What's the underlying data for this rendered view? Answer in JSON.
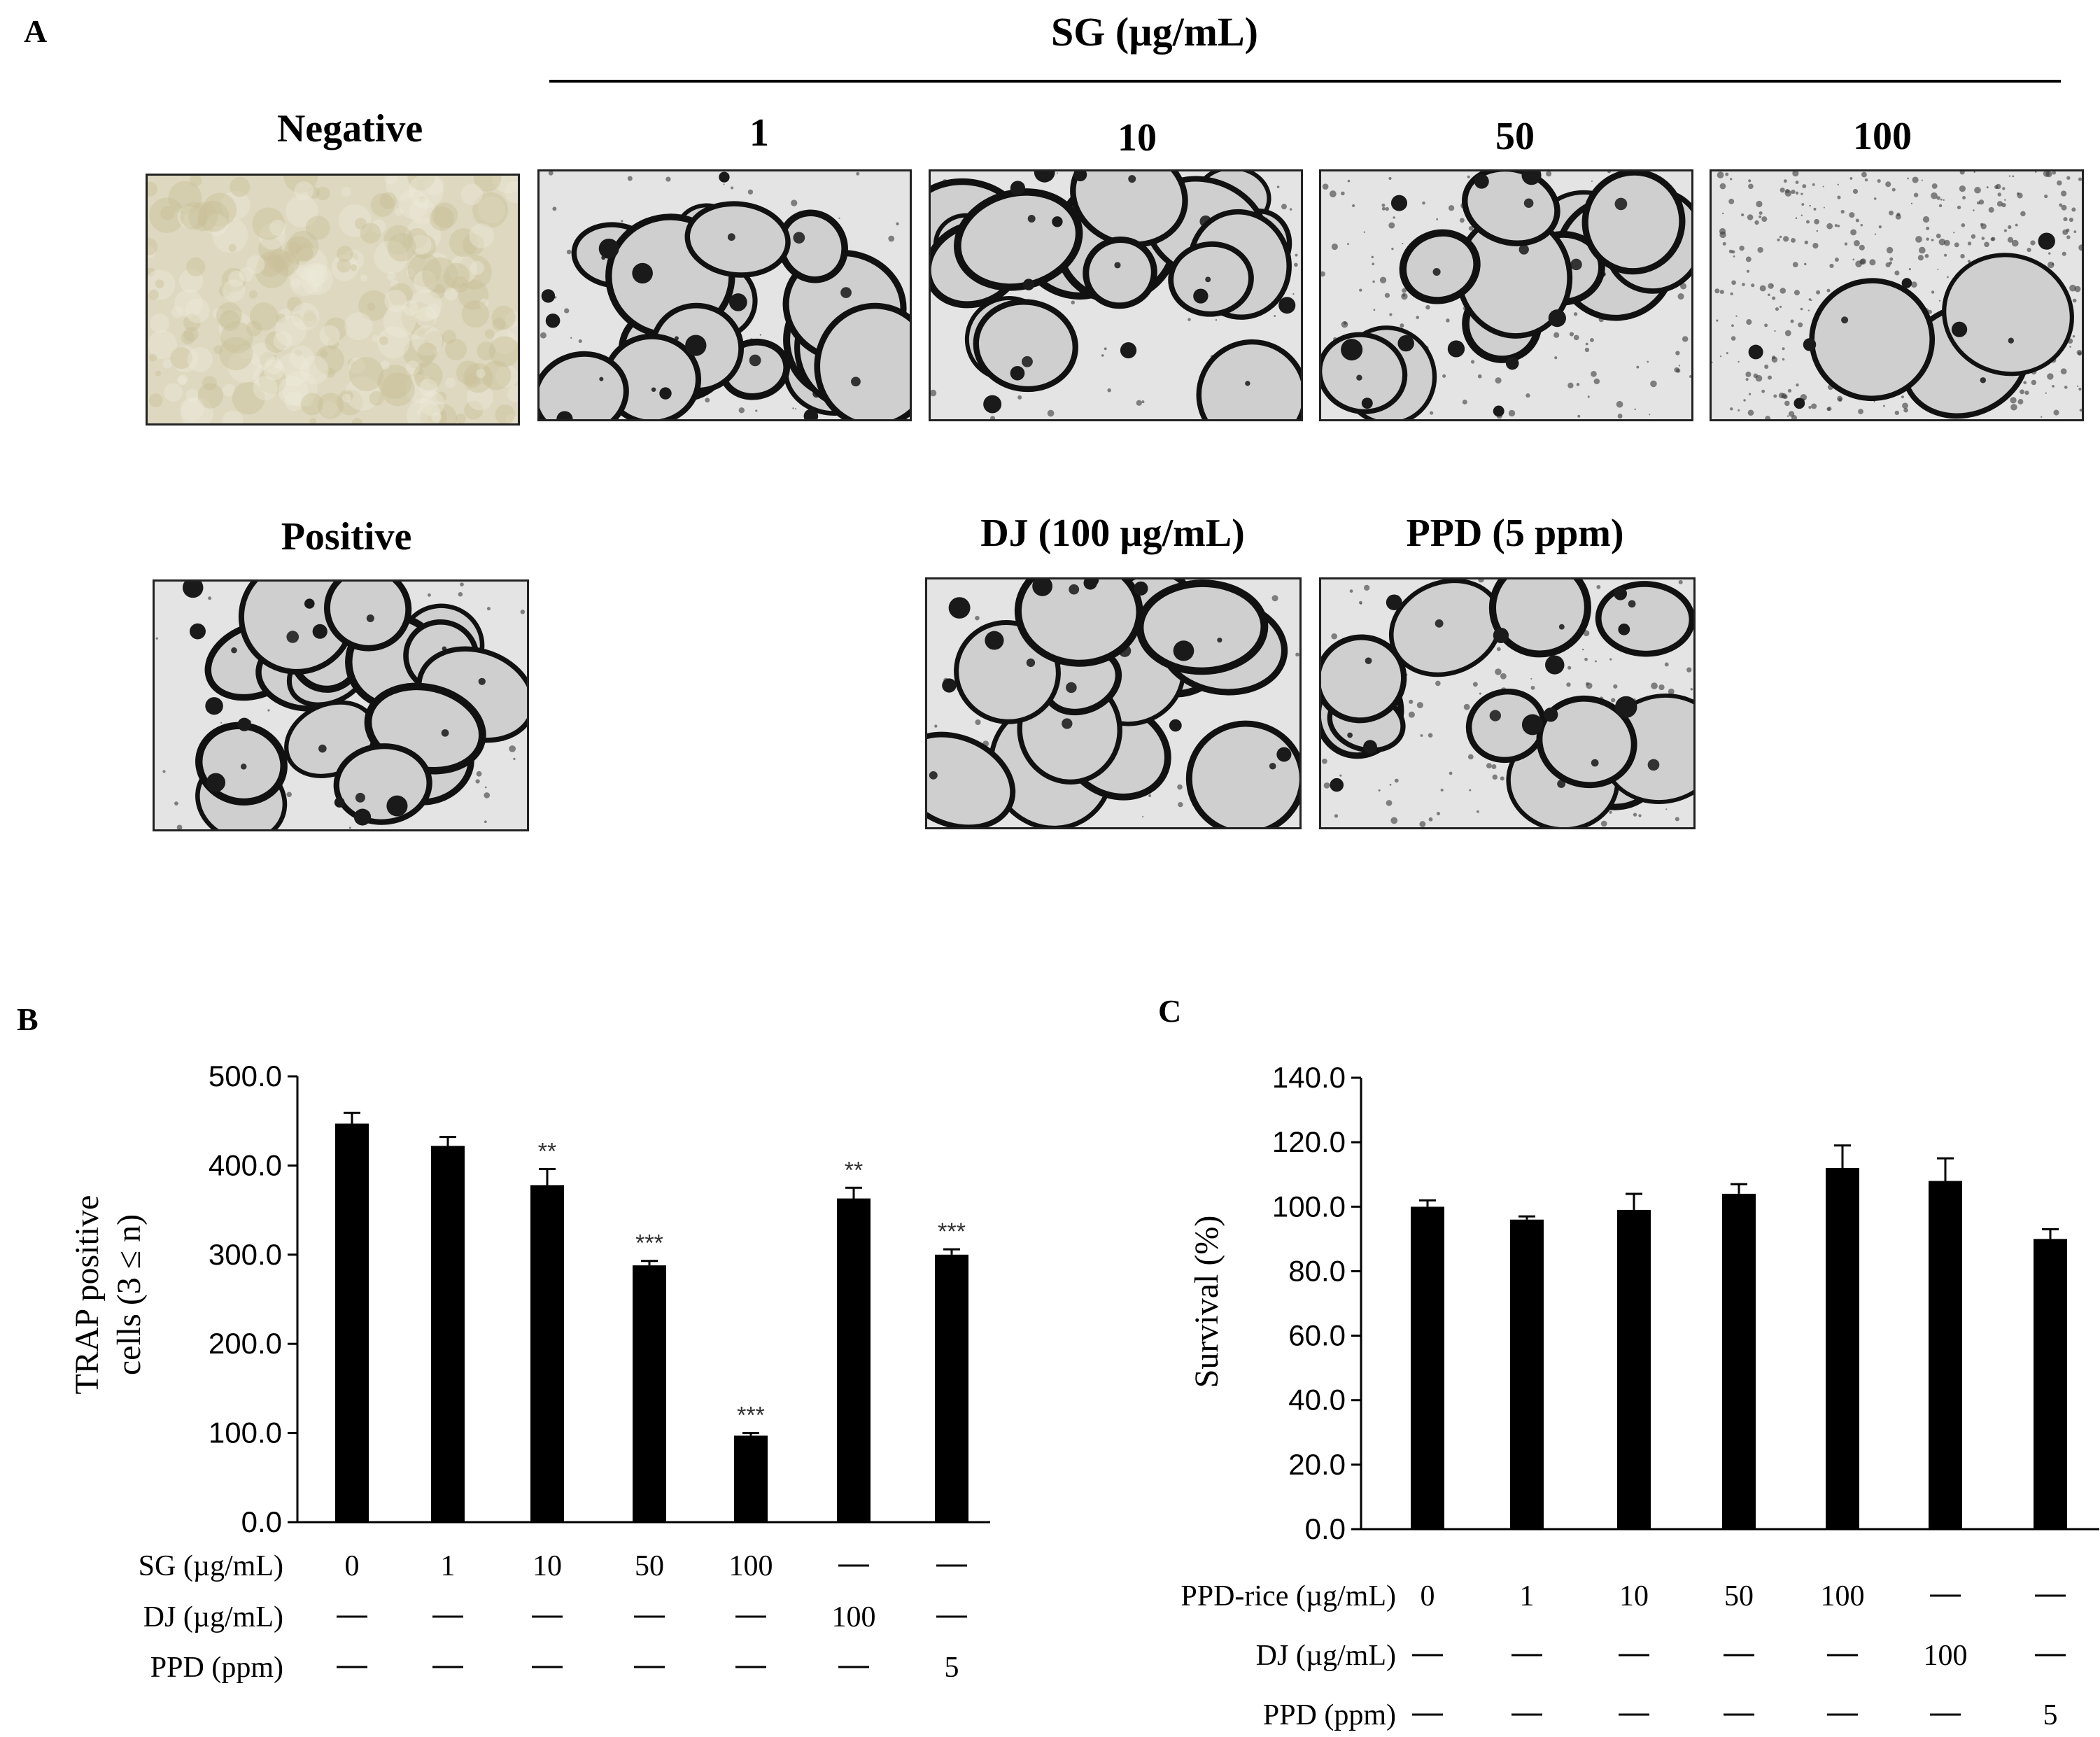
{
  "panel_a": {
    "letter": "A",
    "sg_header": "SG (µg/mL)",
    "images": [
      {
        "id": "negative",
        "title": "Negative",
        "style": "negative"
      },
      {
        "id": "sg1",
        "title": "1",
        "style": "dense"
      },
      {
        "id": "sg10",
        "title": "10",
        "style": "dense"
      },
      {
        "id": "sg50",
        "title": "50",
        "style": "medium"
      },
      {
        "id": "sg100",
        "title": "100",
        "style": "sparse"
      },
      {
        "id": "positive",
        "title": "Positive",
        "style": "dense"
      },
      {
        "id": "dj",
        "title": "DJ (100 µg/mL)",
        "style": "dense"
      },
      {
        "id": "ppd",
        "title": "PPD (5 ppm)",
        "style": "medium"
      }
    ]
  },
  "chart_data": [
    {
      "panel": "B",
      "type": "bar",
      "ylabel_line1": "TRAP positive",
      "ylabel_line2": "cells (3 ≤ n)",
      "ylim": [
        0,
        500
      ],
      "yticks": [
        "0.0",
        "100.0",
        "200.0",
        "300.0",
        "400.0",
        "500.0"
      ],
      "ytick_values": [
        0,
        100,
        200,
        300,
        400,
        500
      ],
      "values": [
        447,
        422,
        378,
        288,
        97,
        363,
        300
      ],
      "errors": [
        12,
        10,
        18,
        5,
        3,
        12,
        6
      ],
      "significance": [
        "",
        "",
        "**",
        "***",
        "***",
        "**",
        "***"
      ],
      "treatment_rows": [
        {
          "label": "SG (µg/mL)",
          "cells": [
            "0",
            "1",
            "10",
            "50",
            "100",
            "—",
            "—"
          ]
        },
        {
          "label": "DJ (µg/mL)",
          "cells": [
            "—",
            "—",
            "—",
            "—",
            "—",
            "100",
            "—"
          ]
        },
        {
          "label": "PPD (ppm)",
          "cells": [
            "—",
            "—",
            "—",
            "—",
            "—",
            "—",
            "5"
          ]
        }
      ]
    },
    {
      "panel": "C",
      "type": "bar",
      "ylabel": "Survival (%)",
      "ylim": [
        0,
        140
      ],
      "yticks": [
        "0.0",
        "20.0",
        "40.0",
        "60.0",
        "80.0",
        "100.0",
        "120.0",
        "140.0"
      ],
      "ytick_values": [
        0,
        20,
        40,
        60,
        80,
        100,
        120,
        140
      ],
      "values": [
        100,
        96,
        99,
        104,
        112,
        108,
        90
      ],
      "errors": [
        2,
        1,
        5,
        3,
        7,
        7,
        3
      ],
      "significance": [
        "",
        "",
        "",
        "",
        "",
        "",
        ""
      ],
      "treatment_rows": [
        {
          "label": "PPD-rice (µg/mL)",
          "cells": [
            "0",
            "1",
            "10",
            "50",
            "100",
            "—",
            "—"
          ]
        },
        {
          "label": "DJ (µg/mL)",
          "cells": [
            "—",
            "—",
            "—",
            "—",
            "—",
            "100",
            "—"
          ]
        },
        {
          "label": "PPD (ppm)",
          "cells": [
            "—",
            "—",
            "—",
            "—",
            "—",
            "—",
            "5"
          ]
        }
      ]
    }
  ]
}
